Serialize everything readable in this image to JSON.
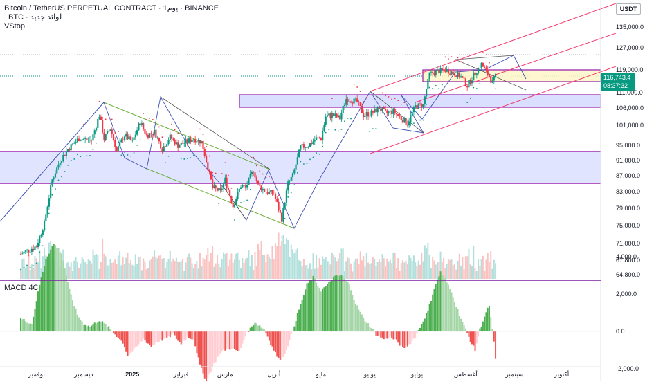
{
  "header": {
    "title_line": "Bitcoin / TetherUS PERPETUAL CONTRACT · 1يوم · BINANCE",
    "symbol_line": "BTC · لوائد جديد",
    "indicator": "VStop",
    "currency_badge": "USDT"
  },
  "macd_panel": {
    "label": "MACD 4C"
  },
  "price_tags": {
    "last_price": "116,743.4",
    "countdown": "08:37:32"
  },
  "colors": {
    "up": "#089981",
    "down": "#f23645",
    "up_light": "#26a69a",
    "down_light": "#ef5350",
    "zone_fill": "#d6dbff",
    "zone_border": "#9c27b0",
    "channel": "#f23c6e",
    "flag_lines": "#3f51b5",
    "green_line": "#6aaf38",
    "yellow_zone": "#fff6c7"
  },
  "chart_data": [
    {
      "type": "candlestick",
      "title": "Bitcoin / TetherUS PERPETUAL CONTRACT",
      "price_axis": {
        "ticks": [
          135000,
          127000,
          119000,
          111000,
          106000,
          101000,
          95000,
          91000,
          87000,
          83000,
          79000,
          75000,
          71000,
          67800,
          64800
        ],
        "tick_labels": [
          "135,000.0",
          "127,000.0",
          "119,000.0",
          "111,000.0",
          "106,000.0",
          "101,000.0",
          "95,000.0",
          "91,000.0",
          "87,000.0",
          "83,000.0",
          "79,000.0",
          "75,000.0",
          "71,000.0",
          "67,800.0",
          "64,800.0"
        ],
        "range": [
          64000,
          144000
        ]
      },
      "time_axis": {
        "labels": [
          "نوفمبر",
          "ديسمبر",
          "2025",
          "فبراير",
          "مارس",
          "أبريل",
          "مايو",
          "يونيو",
          "يوليو",
          "أغسطس",
          "سبتمبر",
          "أكتوبر"
        ],
        "label_days": [
          0,
          30,
          61,
          92,
          120,
          151,
          181,
          212,
          242,
          273,
          304,
          334
        ],
        "visible_days": [
          -10,
          358
        ]
      },
      "path": [
        [
          -10,
          69000
        ],
        [
          0,
          70500
        ],
        [
          5,
          75500
        ],
        [
          10,
          86000
        ],
        [
          15,
          91000
        ],
        [
          20,
          94000
        ],
        [
          27,
          97000
        ],
        [
          35,
          96500
        ],
        [
          40,
          104000
        ],
        [
          43,
          97000
        ],
        [
          47,
          100000
        ],
        [
          51,
          93500
        ],
        [
          56,
          98000
        ],
        [
          61,
          96000
        ],
        [
          66,
          102000
        ],
        [
          70,
          98000
        ],
        [
          75,
          99000
        ],
        [
          80,
          94000
        ],
        [
          85,
          97500
        ],
        [
          90,
          95000
        ],
        [
          95,
          96000
        ],
        [
          100,
          97000
        ],
        [
          105,
          96000
        ],
        [
          108,
          91000
        ],
        [
          112,
          84000
        ],
        [
          117,
          83000
        ],
        [
          120,
          86000
        ],
        [
          125,
          79500
        ],
        [
          130,
          84500
        ],
        [
          133,
          84000
        ],
        [
          138,
          88500
        ],
        [
          141,
          84500
        ],
        [
          146,
          83000
        ],
        [
          151,
          82500
        ],
        [
          156,
          76500
        ],
        [
          160,
          85000
        ],
        [
          163,
          87000
        ],
        [
          168,
          94500
        ],
        [
          173,
          95000
        ],
        [
          178,
          97000
        ],
        [
          181,
          97000
        ],
        [
          184,
          103500
        ],
        [
          188,
          104000
        ],
        [
          193,
          103000
        ],
        [
          197,
          109000
        ],
        [
          204,
          108000
        ],
        [
          208,
          104000
        ],
        [
          213,
          104500
        ],
        [
          218,
          106000
        ],
        [
          222,
          104500
        ],
        [
          227,
          105000
        ],
        [
          232,
          103000
        ],
        [
          236,
          101500
        ],
        [
          241,
          106500
        ],
        [
          246,
          107000
        ],
        [
          250,
          117500
        ],
        [
          255,
          118500
        ],
        [
          260,
          119000
        ],
        [
          265,
          118000
        ],
        [
          270,
          116500
        ],
        [
          274,
          113500
        ],
        [
          279,
          118000
        ],
        [
          283,
          121000
        ],
        [
          287,
          117500
        ],
        [
          290,
          114500
        ],
        [
          292,
          116743
        ]
      ],
      "indicator": "VStop",
      "volume": {
        "shown": true
      }
    },
    {
      "type": "bar",
      "title": "MACD 4C",
      "y_ticks": [
        4000,
        2000,
        0,
        -2000
      ],
      "y_tick_labels": [
        "4,000.0",
        "2,000.0",
        "0.0",
        "-2,000.0"
      ],
      "y_range": [
        -3000,
        5000
      ],
      "histogram_keys": [
        [
          -10,
          700
        ],
        [
          -3,
          400
        ],
        [
          2,
          2500
        ],
        [
          6,
          3900
        ],
        [
          11,
          4700
        ],
        [
          16,
          4200
        ],
        [
          21,
          2200
        ],
        [
          26,
          900
        ],
        [
          30,
          400
        ],
        [
          34,
          250
        ],
        [
          40,
          600
        ],
        [
          45,
          300
        ],
        [
          50,
          -150
        ],
        [
          55,
          -600
        ],
        [
          58,
          -1300
        ],
        [
          62,
          -1000
        ],
        [
          68,
          -400
        ],
        [
          73,
          -800
        ],
        [
          78,
          -500
        ],
        [
          83,
          -350
        ],
        [
          87,
          -150
        ],
        [
          92,
          -700
        ],
        [
          96,
          -300
        ],
        [
          100,
          -400
        ],
        [
          104,
          -1800
        ],
        [
          108,
          -2700
        ],
        [
          111,
          -2100
        ],
        [
          115,
          -1400
        ],
        [
          119,
          -1000
        ],
        [
          124,
          -900
        ],
        [
          129,
          -1100
        ],
        [
          133,
          -200
        ],
        [
          139,
          500
        ],
        [
          145,
          100
        ],
        [
          149,
          -650
        ],
        [
          154,
          -1500
        ],
        [
          157,
          -1400
        ],
        [
          161,
          -500
        ],
        [
          166,
          900
        ],
        [
          172,
          2500
        ],
        [
          176,
          2900
        ],
        [
          181,
          2200
        ],
        [
          185,
          2500
        ],
        [
          189,
          2900
        ],
        [
          194,
          3000
        ],
        [
          199,
          2500
        ],
        [
          203,
          1500
        ],
        [
          208,
          700
        ],
        [
          212,
          300
        ],
        [
          216,
          -150
        ],
        [
          221,
          -400
        ],
        [
          225,
          -300
        ],
        [
          229,
          -500
        ],
        [
          233,
          -900
        ],
        [
          237,
          -700
        ],
        [
          241,
          -300
        ],
        [
          245,
          400
        ],
        [
          249,
          1100
        ],
        [
          253,
          2300
        ],
        [
          257,
          3200
        ],
        [
          260,
          2800
        ],
        [
          265,
          1900
        ],
        [
          269,
          900
        ],
        [
          273,
          100
        ],
        [
          276,
          -500
        ],
        [
          279,
          -1000
        ],
        [
          282,
          100
        ],
        [
          285,
          800
        ],
        [
          288,
          1400
        ],
        [
          291,
          -600
        ],
        [
          292,
          -1500
        ]
      ]
    }
  ]
}
